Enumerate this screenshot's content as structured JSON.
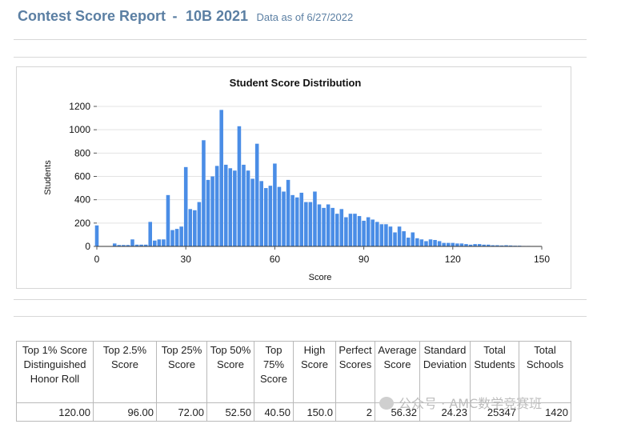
{
  "header": {
    "title": "Contest Score Report",
    "separator": "-",
    "contest": "10B 2021",
    "as_of": "Data as of 6/27/2022"
  },
  "chart_data": {
    "type": "bar",
    "title": "Student Score Distribution",
    "xlabel": "Score",
    "ylabel": "Students",
    "xlim": [
      0,
      150
    ],
    "ylim": [
      0,
      1200
    ],
    "x_ticks": [
      0,
      30,
      60,
      90,
      120,
      150
    ],
    "y_ticks": [
      0,
      200,
      400,
      600,
      800,
      1000,
      1200
    ],
    "grid": true,
    "legend": "none",
    "bar_color": "#4a8de6",
    "x": [
      0,
      6,
      7.5,
      9,
      10.5,
      12,
      13.5,
      15,
      16.5,
      18,
      19.5,
      21,
      22.5,
      24,
      25.5,
      27,
      28.5,
      30,
      31.5,
      33,
      34.5,
      36,
      37.5,
      39,
      40.5,
      42,
      43.5,
      45,
      46.5,
      48,
      49.5,
      51,
      52.5,
      54,
      55.5,
      57,
      58.5,
      60,
      61.5,
      63,
      64.5,
      66,
      67.5,
      69,
      70.5,
      72,
      73.5,
      75,
      76.5,
      78,
      79.5,
      81,
      82.5,
      84,
      85.5,
      87,
      88.5,
      90,
      91.5,
      93,
      94.5,
      96,
      97.5,
      99,
      100.5,
      102,
      103.5,
      105,
      106.5,
      108,
      109.5,
      111,
      112.5,
      114,
      115.5,
      117,
      118.5,
      120,
      121.5,
      123,
      124.5,
      126,
      127.5,
      129,
      130.5,
      132,
      133.5,
      135,
      136.5,
      138,
      139.5,
      141,
      142.5,
      144,
      145.5,
      147
    ],
    "values": [
      180,
      25,
      12,
      12,
      12,
      60,
      15,
      15,
      15,
      210,
      50,
      60,
      60,
      440,
      140,
      150,
      170,
      680,
      320,
      310,
      380,
      910,
      570,
      600,
      690,
      1170,
      700,
      670,
      650,
      1030,
      700,
      650,
      580,
      880,
      560,
      500,
      520,
      710,
      510,
      470,
      570,
      440,
      420,
      460,
      380,
      380,
      470,
      360,
      330,
      360,
      330,
      280,
      320,
      250,
      280,
      280,
      260,
      220,
      250,
      230,
      210,
      190,
      190,
      170,
      120,
      170,
      130,
      75,
      120,
      70,
      60,
      45,
      60,
      55,
      45,
      30,
      30,
      30,
      25,
      25,
      20,
      15,
      20,
      20,
      15,
      15,
      10,
      10,
      8,
      10,
      8,
      6,
      6,
      4,
      4,
      3
    ]
  },
  "table": {
    "headers": [
      "Top 1% Score Distinguished Honor Roll",
      "Top 2.5% Score",
      "Top 25% Score",
      "Top 50% Score",
      "Top 75% Score",
      "High Score",
      "Perfect Scores",
      "Average Score",
      "Standard Deviation",
      "Total Students",
      "Total Schools"
    ],
    "values": [
      "120.00",
      "96.00",
      "72.00",
      "52.50",
      "40.50",
      "150.0",
      "2",
      "56.32",
      "24.23",
      "25347",
      "1420"
    ]
  },
  "watermark": "公众号 · AMC数学竞赛班"
}
